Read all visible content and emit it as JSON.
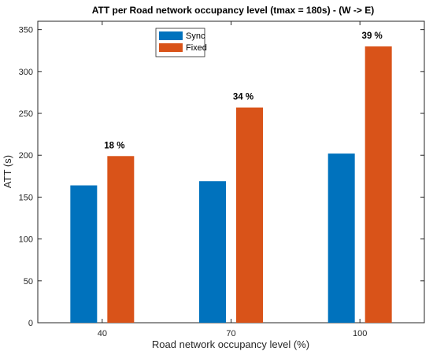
{
  "chart_data": {
    "type": "bar",
    "title": "ATT per Road network occupancy level (tmax = 180s) - (W -> E)",
    "xlabel": "Road network occupancy level (%)",
    "ylabel": "ATT (s)",
    "categories": [
      "40",
      "70",
      "100"
    ],
    "series": [
      {
        "name": "Sync",
        "color": "#0072bd",
        "values": [
          164,
          169,
          202
        ]
      },
      {
        "name": "Fixed",
        "color": "#d95319",
        "values": [
          199,
          257,
          330
        ]
      }
    ],
    "annotations": [
      "18 %",
      "34 %",
      "39 %"
    ],
    "ylim": [
      0,
      360
    ],
    "yticks": [
      0,
      50,
      100,
      150,
      200,
      250,
      300,
      350
    ],
    "grid": false,
    "legend_position": "top-left"
  }
}
